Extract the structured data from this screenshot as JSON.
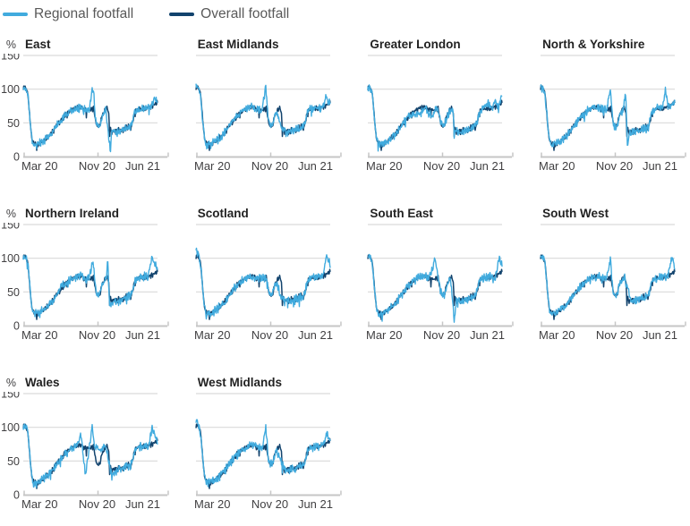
{
  "legend": {
    "items": [
      {
        "label": "Regional footfall",
        "color": "#41ABDE"
      },
      {
        "label": "Overall footfall",
        "color": "#12436D"
      }
    ]
  },
  "colors": {
    "regional": "#41ABDE",
    "overall": "#12436D",
    "gridline": "#D9D9D9",
    "axis_line": "#C6C6C6",
    "title_text": "#222222",
    "tick_text": "#414042",
    "legend_text": "#595959"
  },
  "chart_data": {
    "type": "line",
    "layout": "small-multiples",
    "columns": 4,
    "series_legend": [
      "Regional footfall",
      "Overall footfall"
    ],
    "y_axis": {
      "unit_label": "%",
      "ticks": [
        150,
        100,
        50,
        0
      ],
      "range": [
        0,
        150
      ],
      "grid": true
    },
    "x_axis": {
      "ticks": [
        "Mar 20",
        "Nov 20",
        "Jun 21"
      ],
      "tick_positions": [
        0,
        0.55,
        1
      ]
    },
    "noise": {
      "samples": 300,
      "regional_amp": 4.5,
      "overall_amp": 3,
      "weekly_amp": 2.5
    },
    "overall_seed": 7,
    "overall_anchors": [
      [
        0,
        101
      ],
      [
        0.012,
        103
      ],
      [
        0.025,
        99
      ],
      [
        0.035,
        90
      ],
      [
        0.05,
        55
      ],
      [
        0.065,
        25
      ],
      [
        0.08,
        17
      ],
      [
        0.1,
        18
      ],
      [
        0.13,
        21
      ],
      [
        0.16,
        25
      ],
      [
        0.19,
        30
      ],
      [
        0.22,
        37
      ],
      [
        0.25,
        46
      ],
      [
        0.28,
        54
      ],
      [
        0.31,
        61
      ],
      [
        0.34,
        66
      ],
      [
        0.37,
        70
      ],
      [
        0.4,
        73
      ],
      [
        0.43,
        73
      ],
      [
        0.46,
        71
      ],
      [
        0.49,
        69
      ],
      [
        0.51,
        72
      ],
      [
        0.525,
        69
      ],
      [
        0.54,
        52
      ],
      [
        0.555,
        45
      ],
      [
        0.57,
        46
      ],
      [
        0.585,
        58
      ],
      [
        0.6,
        66
      ],
      [
        0.615,
        70
      ],
      [
        0.628,
        71
      ],
      [
        0.638,
        62
      ],
      [
        0.643,
        30
      ],
      [
        0.648,
        42
      ],
      [
        0.66,
        38
      ],
      [
        0.69,
        36
      ],
      [
        0.72,
        38
      ],
      [
        0.75,
        40
      ],
      [
        0.78,
        43
      ],
      [
        0.8,
        45
      ],
      [
        0.815,
        52
      ],
      [
        0.83,
        66
      ],
      [
        0.85,
        70
      ],
      [
        0.87,
        71
      ],
      [
        0.89,
        72
      ],
      [
        0.91,
        73
      ],
      [
        0.93,
        72
      ],
      [
        0.95,
        74
      ],
      [
        0.97,
        76
      ],
      [
        0.99,
        79
      ],
      [
        1,
        80
      ]
    ],
    "regions": [
      {
        "title": "East",
        "seed": 11,
        "show_y_labels": true,
        "overrides": [
          [
            0.52,
            104
          ],
          [
            0.628,
            88
          ],
          [
            0.634,
            118
          ],
          [
            0.642,
            20
          ],
          [
            0.648,
            8
          ],
          [
            0.97,
            105
          ],
          [
            0.98,
            85
          ]
        ]
      },
      {
        "title": "East Midlands",
        "seed": 22,
        "show_y_labels": false,
        "overrides": [
          [
            0.008,
            107
          ],
          [
            0.52,
            102
          ],
          [
            0.62,
            80
          ],
          [
            0.63,
            12
          ],
          [
            0.64,
            40
          ],
          [
            0.97,
            93
          ]
        ]
      },
      {
        "title": "Greater London",
        "seed": 33,
        "show_y_labels": false,
        "overrides": [
          [
            0.33,
            62
          ],
          [
            0.37,
            65
          ],
          [
            0.41,
            66
          ],
          [
            0.45,
            63
          ],
          [
            0.49,
            62
          ],
          [
            0.585,
            55
          ],
          [
            0.6,
            62
          ],
          [
            0.86,
            75
          ],
          [
            0.9,
            78
          ],
          [
            0.95,
            82
          ],
          [
            0.99,
            92
          ],
          [
            1,
            88
          ]
        ]
      },
      {
        "title": "North & Yorkshire",
        "seed": 44,
        "show_y_labels": false,
        "overrides": [
          [
            0.52,
            100
          ],
          [
            0.634,
            95
          ],
          [
            0.648,
            10
          ],
          [
            0.93,
            98
          ],
          [
            1,
            84
          ]
        ]
      },
      {
        "title": "Northern Ireland",
        "seed": 55,
        "show_y_labels": true,
        "overrides": [
          [
            0.27,
            80
          ],
          [
            0.277,
            133
          ],
          [
            0.285,
            60
          ],
          [
            0.52,
            98
          ],
          [
            0.63,
            95
          ],
          [
            0.655,
            135
          ],
          [
            0.663,
            6
          ],
          [
            0.67,
            35
          ],
          [
            0.96,
            103
          ],
          [
            1,
            82
          ]
        ]
      },
      {
        "title": "Scotland",
        "seed": 66,
        "show_y_labels": false,
        "overrides": [
          [
            0.006,
            115
          ],
          [
            0.615,
            85
          ],
          [
            0.625,
            3
          ],
          [
            0.635,
            40
          ],
          [
            0.97,
            108
          ],
          [
            1,
            88
          ]
        ]
      },
      {
        "title": "South East",
        "seed": 77,
        "show_y_labels": false,
        "overrides": [
          [
            0.5,
            100
          ],
          [
            0.634,
            98
          ],
          [
            0.645,
            6
          ],
          [
            0.98,
            102
          ],
          [
            1,
            88
          ]
        ]
      },
      {
        "title": "South West",
        "seed": 88,
        "show_y_labels": false,
        "overrides": [
          [
            0.52,
            98
          ],
          [
            0.648,
            80
          ],
          [
            0.656,
            140
          ],
          [
            0.664,
            6
          ],
          [
            0.67,
            40
          ],
          [
            0.98,
            104
          ],
          [
            1,
            86
          ]
        ]
      },
      {
        "title": "Wales",
        "seed": 99,
        "show_y_labels": true,
        "overrides": [
          [
            0.43,
            88
          ],
          [
            0.465,
            28
          ],
          [
            0.48,
            55
          ],
          [
            0.515,
            103
          ],
          [
            0.53,
            68
          ],
          [
            0.555,
            70
          ],
          [
            0.58,
            68
          ],
          [
            0.61,
            72
          ],
          [
            0.637,
            90
          ],
          [
            0.645,
            6
          ],
          [
            0.655,
            40
          ],
          [
            0.66,
            32
          ],
          [
            0.69,
            34
          ],
          [
            0.96,
            98
          ],
          [
            1,
            78
          ]
        ]
      },
      {
        "title": "West Midlands",
        "seed": 110,
        "show_y_labels": false,
        "overrides": [
          [
            0.006,
            110
          ],
          [
            0.52,
            100
          ],
          [
            0.625,
            78
          ],
          [
            0.632,
            10
          ],
          [
            0.64,
            45
          ],
          [
            0.97,
            90
          ],
          [
            1,
            82
          ]
        ]
      }
    ]
  }
}
